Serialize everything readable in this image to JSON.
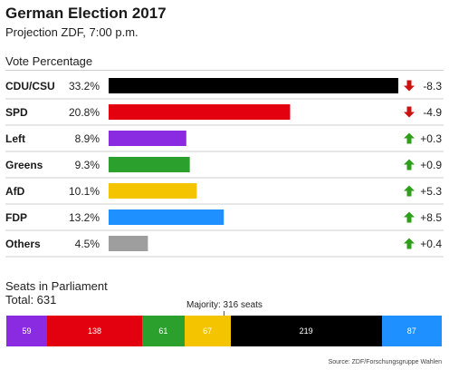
{
  "header": {
    "title": "German Election 2017",
    "subtitle": "Projection ZDF, 7:00 p.m."
  },
  "colors": {
    "up": "#2f9e1a",
    "down": "#cc1111",
    "rule": "#cfcfcf",
    "text": "#222222"
  },
  "chart_data": [
    {
      "type": "bar",
      "orientation": "horizontal",
      "title": "Vote Percentage",
      "categories": [
        "CDU/CSU",
        "SPD",
        "Left",
        "Greens",
        "AfD",
        "FDP",
        "Others"
      ],
      "values": [
        33.2,
        20.8,
        8.9,
        9.3,
        10.1,
        13.2,
        4.5
      ],
      "value_labels": [
        "33.2%",
        "20.8%",
        "8.9%",
        "9.3%",
        "10.1%",
        "13.2%",
        "4.5%"
      ],
      "changes": [
        -8.3,
        -4.9,
        0.3,
        0.9,
        5.3,
        8.5,
        0.4
      ],
      "change_labels": [
        "-8.3",
        "-4.9",
        "+0.3",
        "+0.9",
        "+5.3",
        "+8.5",
        "+0.4"
      ],
      "colors": [
        "#000000",
        "#e3000f",
        "#8a2be2",
        "#2ca02c",
        "#f5c400",
        "#1e90ff",
        "#9e9e9e"
      ],
      "xlim": [
        0,
        33.2
      ]
    },
    {
      "type": "bar",
      "orientation": "stacked-horizontal",
      "title": "Seats in Parliament",
      "total_label": "Total: 631",
      "total": 631,
      "segments": [
        {
          "label": "59",
          "value": 59,
          "color": "#8a2be2"
        },
        {
          "label": "138",
          "value": 138,
          "color": "#e3000f"
        },
        {
          "label": "61",
          "value": 61,
          "color": "#2ca02c"
        },
        {
          "label": "67",
          "value": 67,
          "color": "#f5c400"
        },
        {
          "label": "219",
          "value": 219,
          "color": "#000000"
        },
        {
          "label": "87",
          "value": 87,
          "color": "#1e90ff"
        }
      ],
      "majority_label": "Majority: 316 seats",
      "majority": 316
    }
  ],
  "source": "Source: ZDF/Forschungsgruppe Wahlen"
}
